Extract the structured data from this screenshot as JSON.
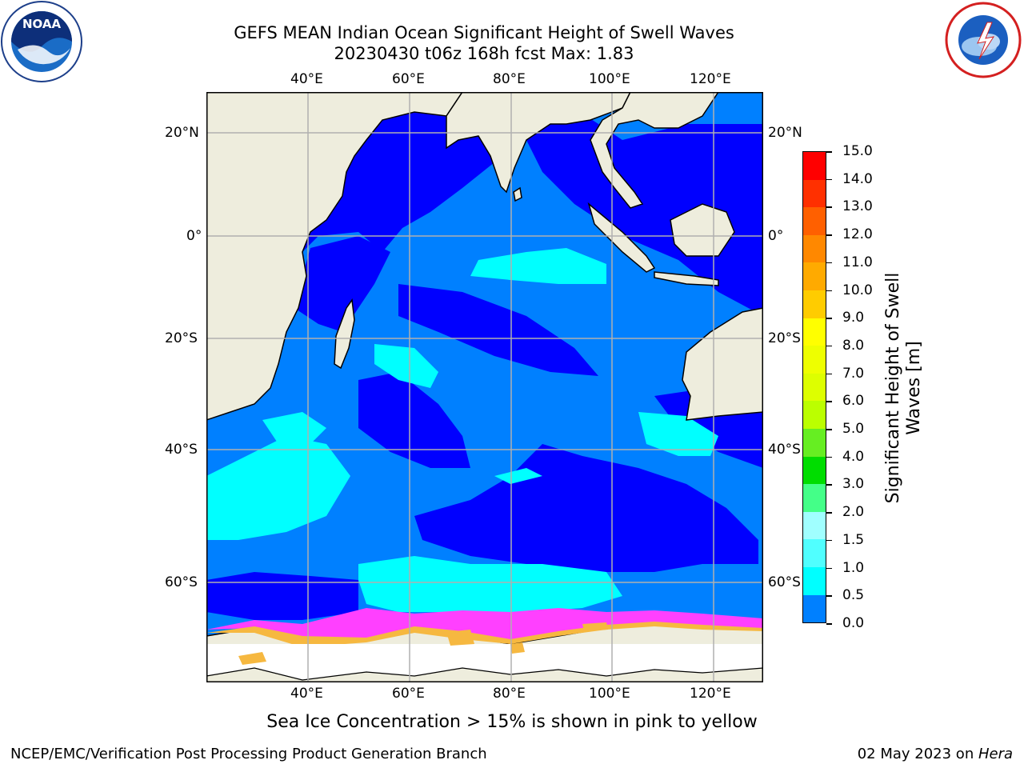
{
  "title": {
    "line1": "GEFS MEAN Indian Ocean Significant Height of Swell Waves",
    "line2": "20230430 t06z 168h fcst   Max: 1.83"
  },
  "map": {
    "lon_labels": [
      "40°E",
      "60°E",
      "80°E",
      "100°E",
      "120°E"
    ],
    "lat_labels": [
      "20°N",
      "0°",
      "20°S",
      "40°S",
      "60°S"
    ],
    "colors": {
      "land": "#eeeddd",
      "ocean_0_0_5": "#0000ff",
      "ocean_0_5_1_0": "#0080ff",
      "ocean_1_0_1_5": "#00ffff",
      "ocean_1_5_2_0": "#40f4f4",
      "ice_low": "#ff40ff",
      "ice_high": "#f6b840",
      "grid": "#b0b0b0"
    }
  },
  "colorbar": {
    "title_line1": "Significant Height of Swell",
    "title_line2": "Waves [m]",
    "labels": [
      "15.0",
      "14.0",
      "13.0",
      "12.0",
      "11.0",
      "10.0",
      "9.0",
      "8.0",
      "7.0",
      "6.0",
      "5.0",
      "4.0",
      "3.0",
      "2.0",
      "1.5",
      "1.0",
      "0.5",
      "0.0"
    ],
    "colors": [
      "#ff0000",
      "#ff3000",
      "#ff6000",
      "#ff8800",
      "#ffaa00",
      "#ffcc00",
      "#ffff00",
      "#eeff00",
      "#ddff00",
      "#bbff00",
      "#66ee22",
      "#00dd00",
      "#44ff88",
      "#a0ffff",
      "#50ffff",
      "#00ffff",
      "#0080ff",
      "#0000ff"
    ]
  },
  "sea_ice_note": "Sea Ice Concentration > 15% is shown in pink to yellow",
  "footer": {
    "left": "NCEP/EMC/Verification Post Processing Product Generation Branch",
    "right_prefix": "02 May 2023 on ",
    "right_machine": "Hera"
  },
  "logos": {
    "noaa_text": "NOAA",
    "noaa_ring": "NATIONAL OCEANIC AND ATMOSPHERIC ADMINISTRATION · U.S. DEPARTMENT OF COMMERCE",
    "nws_ring": "NATIONAL WEATHER SERVICE"
  }
}
